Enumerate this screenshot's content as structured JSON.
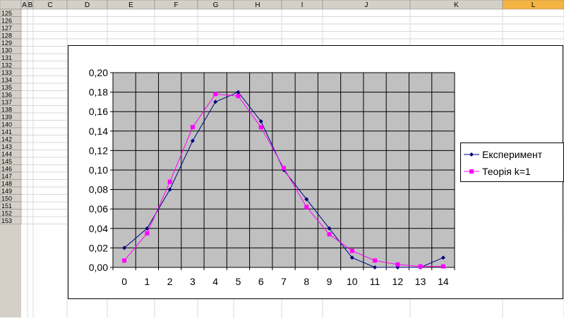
{
  "spreadsheet": {
    "columns": [
      "A",
      "B",
      "C",
      "D",
      "E",
      "F",
      "G",
      "H",
      "I",
      "J",
      "K",
      "L"
    ],
    "selected_column": "L",
    "rows": [
      "125",
      "126",
      "127",
      "128",
      "129",
      "130",
      "131",
      "132",
      "133",
      "134",
      "135",
      "136",
      "137",
      "138",
      "139",
      "140",
      "141",
      "142",
      "143",
      "144",
      "145",
      "146",
      "147",
      "148",
      "149",
      "150",
      "151",
      "152",
      "153"
    ]
  },
  "colors": {
    "header_bg": "#d4d0c8",
    "selected_header_bg": "#f5b342",
    "plot_bg": "#c0c0c0",
    "series_experiment": "#000080",
    "series_theory": "#ff00ff"
  },
  "chart_data": {
    "type": "line",
    "x": [
      0,
      1,
      2,
      3,
      4,
      5,
      6,
      7,
      8,
      9,
      10,
      11,
      12,
      13,
      14
    ],
    "ylim": [
      0,
      0.2
    ],
    "y_tick_labels": [
      "0,00",
      "0,02",
      "0,04",
      "0,06",
      "0,08",
      "0,10",
      "0,12",
      "0,14",
      "0,16",
      "0,18",
      "0,20"
    ],
    "x_tick_labels": [
      "0",
      "1",
      "2",
      "3",
      "4",
      "5",
      "6",
      "7",
      "8",
      "9",
      "10",
      "11",
      "12",
      "13",
      "14"
    ],
    "grid": true,
    "legend_placement": "right",
    "series": [
      {
        "name": "Експеримент",
        "marker": "diamond",
        "color": "#000080",
        "values": [
          0.02,
          0.04,
          0.08,
          0.13,
          0.17,
          0.18,
          0.15,
          0.1,
          0.07,
          0.04,
          0.01,
          0.0,
          0.0,
          0.0,
          0.01
        ]
      },
      {
        "name": "Теорія k=1",
        "marker": "square",
        "color": "#ff00ff",
        "values": [
          0.007,
          0.035,
          0.088,
          0.144,
          0.178,
          0.176,
          0.144,
          0.102,
          0.062,
          0.034,
          0.017,
          0.007,
          0.003,
          0.001,
          0.001
        ]
      }
    ]
  }
}
